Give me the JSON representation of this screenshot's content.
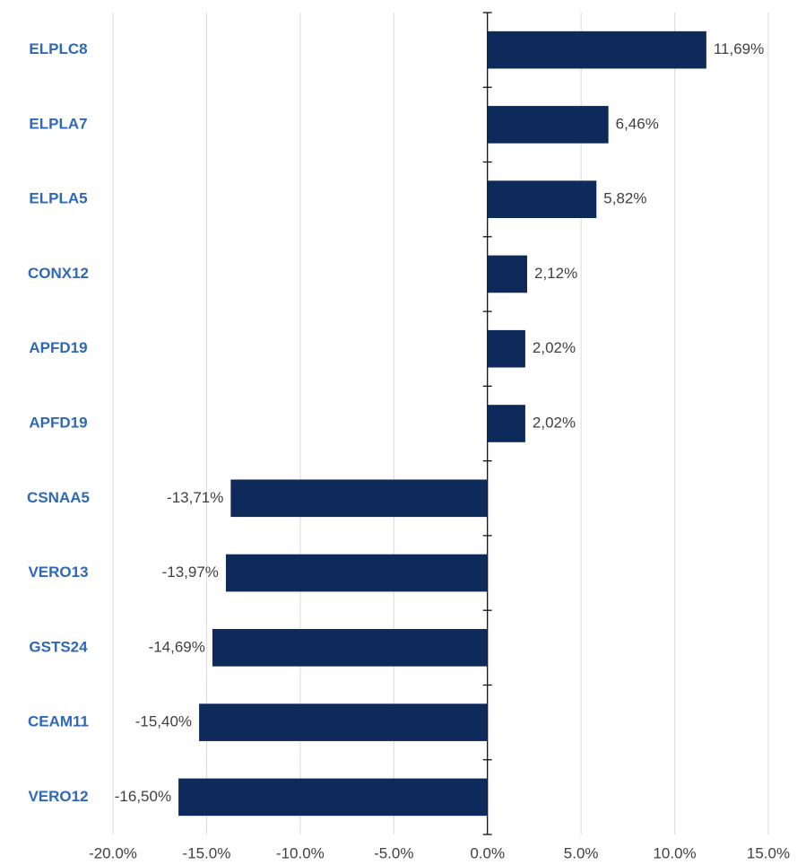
{
  "chart_data": {
    "type": "barh",
    "categories": [
      "ELPLC8",
      "ELPLA7",
      "ELPLA5",
      "CONX12",
      "APFD19",
      "APFD19",
      "CSNAA5",
      "VERO13",
      "GSTS24",
      "CEAM11",
      "VERO12"
    ],
    "values": [
      11.69,
      6.46,
      5.82,
      2.12,
      2.02,
      2.02,
      -13.71,
      -13.97,
      -14.69,
      -15.4,
      -16.5
    ],
    "value_labels": [
      "11,69%",
      "6,46%",
      "5,82%",
      "2,12%",
      "2,02%",
      "2,02%",
      "-13,71%",
      "-13,97%",
      "-14,69%",
      "-15,40%",
      "-16,50%"
    ],
    "color": "#0e2a5a",
    "xlim": [
      -20,
      15
    ],
    "xticks": [
      {
        "value": -20,
        "label": "-20.0%"
      },
      {
        "value": -15,
        "label": "-15.0%"
      },
      {
        "value": -10,
        "label": "-10.0%"
      },
      {
        "value": -5,
        "label": "-5.0%"
      },
      {
        "value": 0,
        "label": "0.0%"
      },
      {
        "value": 5,
        "label": "5.0%"
      },
      {
        "value": 10,
        "label": "10.0%"
      },
      {
        "value": 15,
        "label": "15.0%"
      }
    ],
    "grid": true
  }
}
